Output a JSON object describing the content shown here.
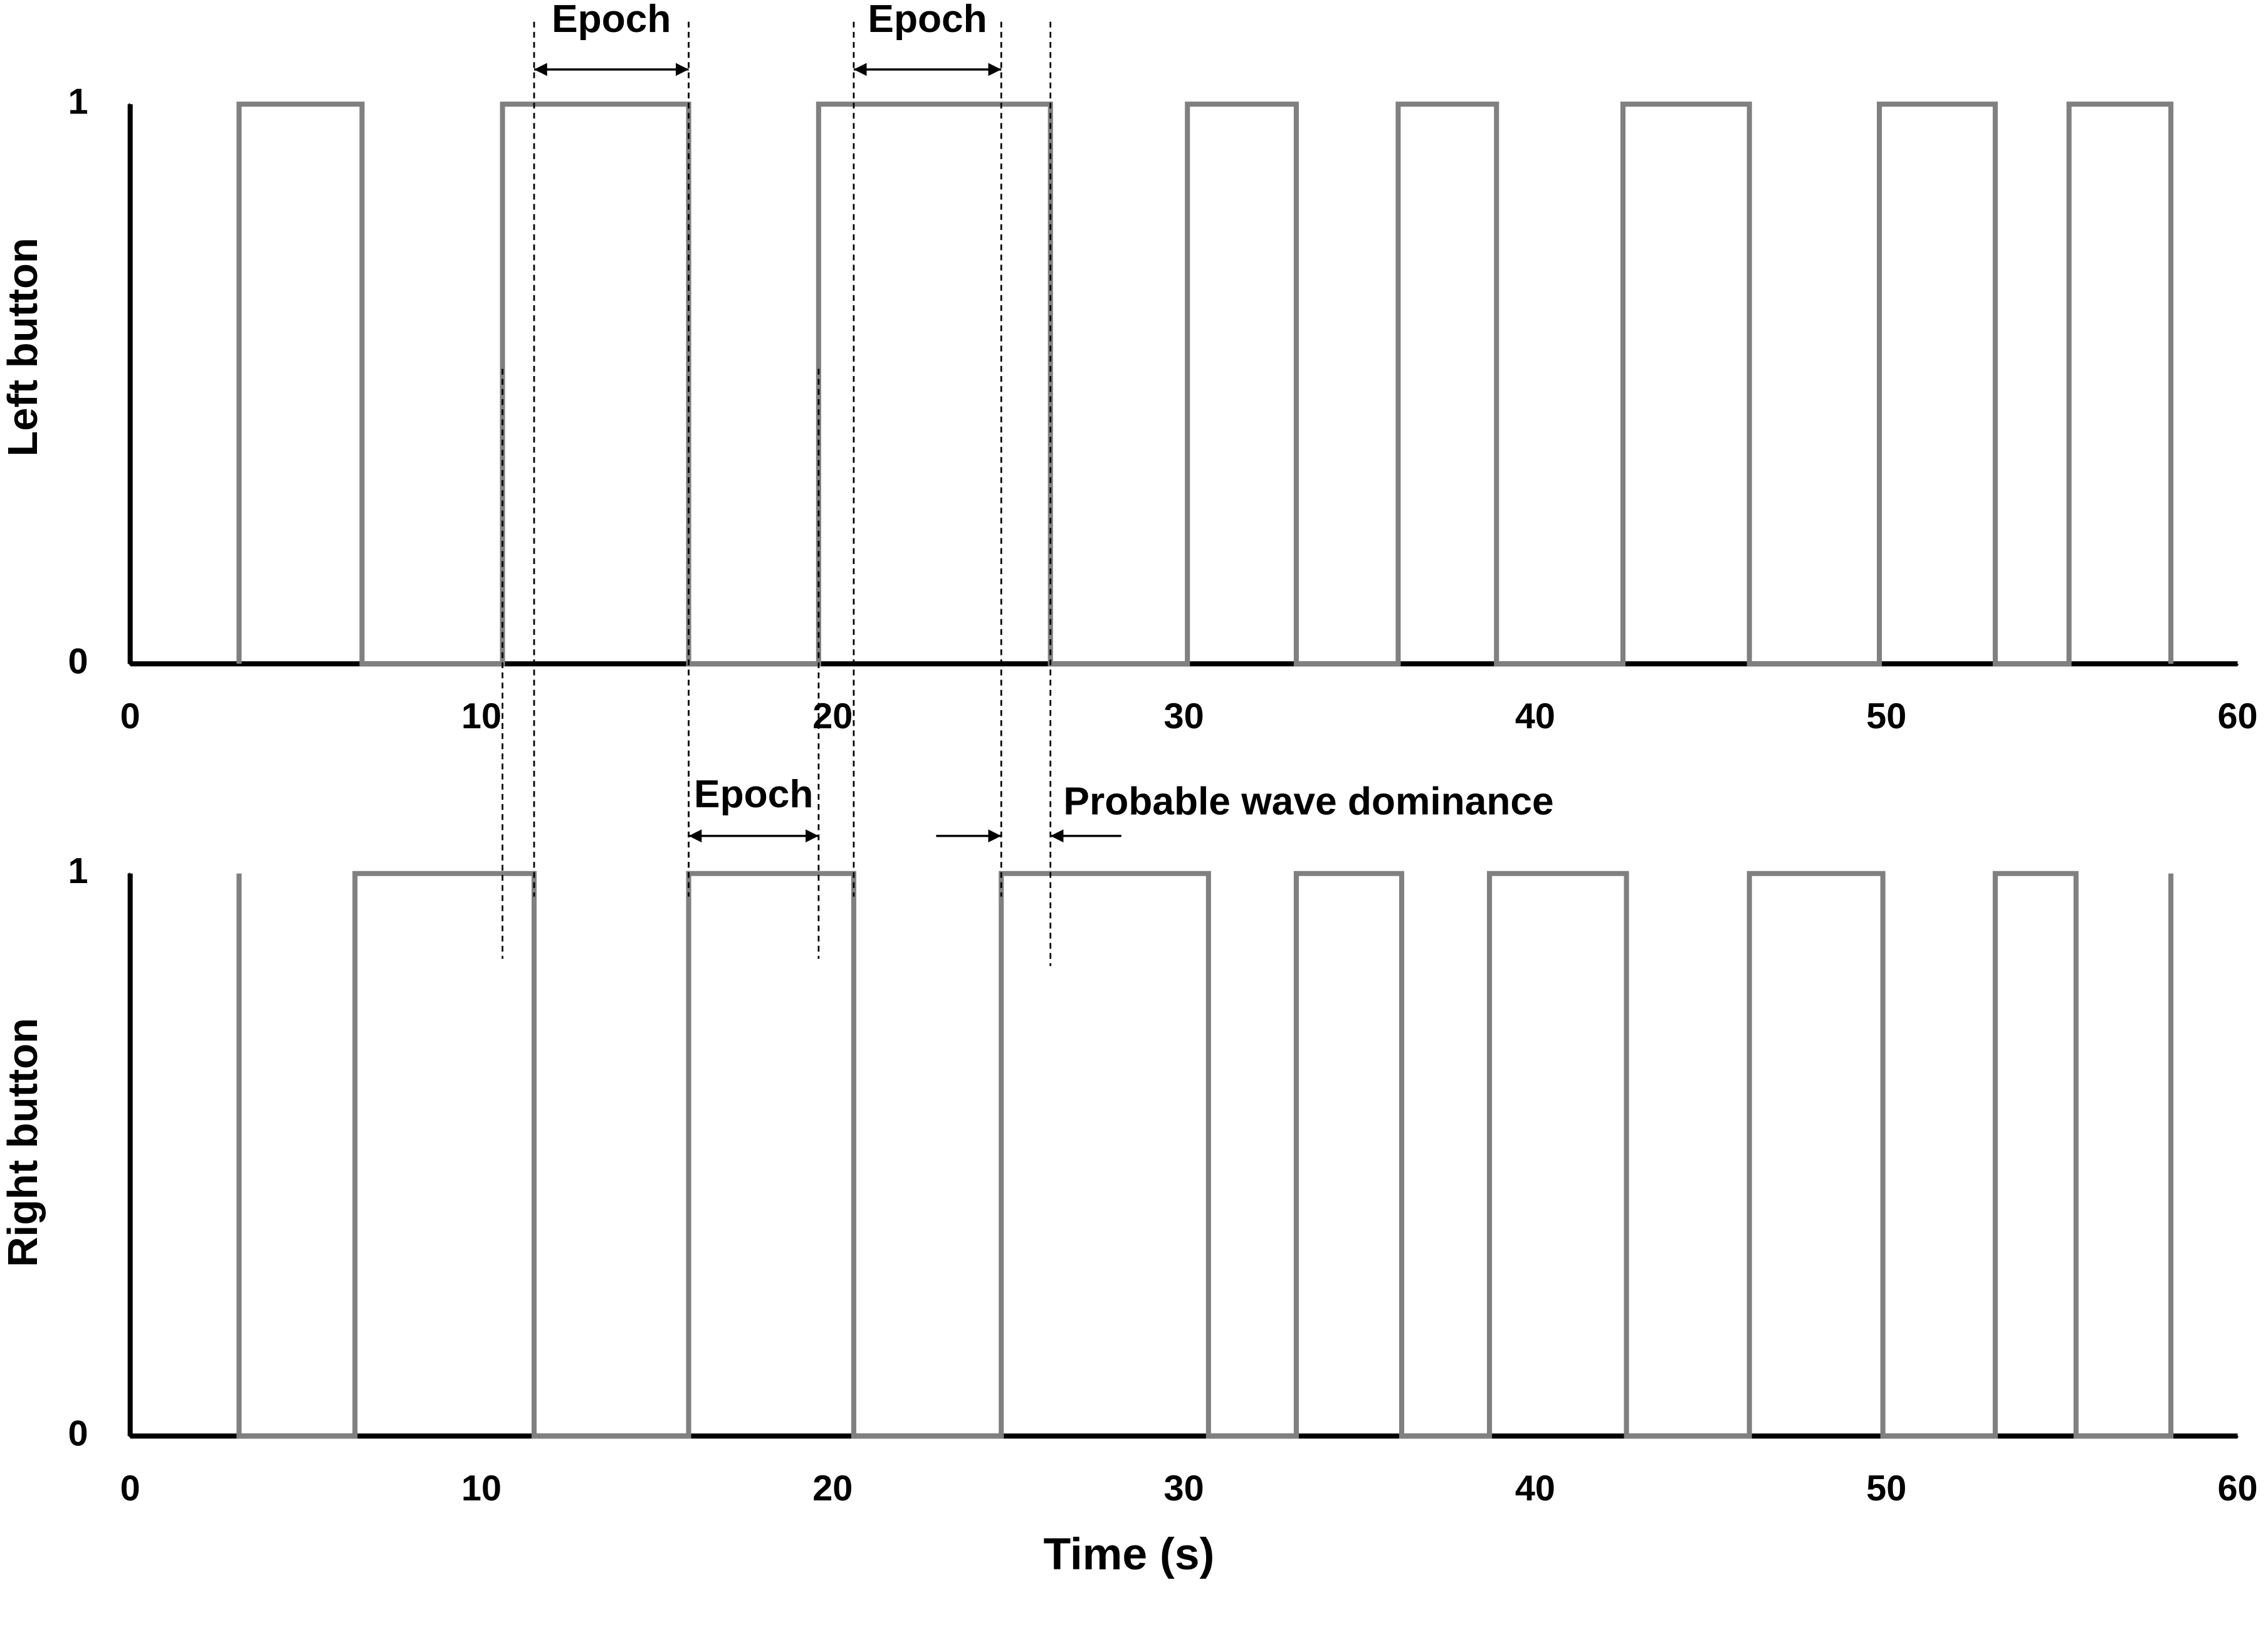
{
  "chart_data": [
    {
      "type": "line",
      "ylabel": "Left button",
      "x": [
        3.1,
        3.1,
        6.6,
        6.6,
        10.6,
        10.6,
        15.9,
        15.9,
        19.6,
        19.6,
        26.2,
        26.2,
        30.1,
        30.1,
        33.2,
        33.2,
        36.1,
        36.1,
        38.9,
        38.9,
        42.5,
        42.5,
        46.1,
        46.1,
        49.8,
        49.8,
        53.1,
        53.1,
        55.2,
        55.2,
        58.1,
        58.1
      ],
      "series": [
        {
          "color": "#808080",
          "values": [
            0,
            1,
            1,
            0,
            0,
            1,
            1,
            0,
            0,
            1,
            1,
            0,
            0,
            1,
            1,
            0,
            0,
            1,
            1,
            0,
            0,
            1,
            1,
            0,
            0,
            1,
            1,
            0,
            0,
            1,
            1,
            0
          ]
        }
      ],
      "xlim": [
        0,
        60
      ],
      "xticks": [
        0,
        10,
        20,
        30,
        40,
        50,
        60
      ],
      "ylim": [
        0,
        1
      ],
      "yticks": [
        0,
        1
      ],
      "annotations": [
        "Epoch",
        "Epoch",
        "Epoch",
        "Probable wave dominance"
      ]
    },
    {
      "type": "line",
      "ylabel": "Right button",
      "xlabel": "Time (s)",
      "x": [
        3.1,
        3.1,
        3.1,
        6.4,
        6.4,
        11.5,
        11.5,
        15.9,
        15.9,
        20.6,
        20.6,
        24.8,
        24.8,
        30.7,
        30.7,
        33.2,
        33.2,
        36.2,
        36.2,
        38.7,
        38.7,
        42.6,
        42.6,
        46.1,
        46.1,
        49.9,
        49.9,
        53.1,
        53.1,
        55.4,
        55.4,
        58.1,
        58.1,
        58.1
      ],
      "series": [
        {
          "color": "#808080",
          "values": [
            0,
            1,
            0,
            0,
            1,
            1,
            0,
            0,
            1,
            1,
            0,
            0,
            1,
            1,
            0,
            0,
            1,
            1,
            0,
            0,
            1,
            1,
            0,
            0,
            1,
            1,
            0,
            0,
            1,
            1,
            0,
            0,
            1,
            0
          ]
        }
      ],
      "xlim": [
        0,
        60
      ],
      "xticks": [
        0,
        10,
        20,
        30,
        40,
        50,
        60
      ],
      "ylim": [
        0,
        1
      ],
      "yticks": [
        0,
        1
      ]
    }
  ]
}
